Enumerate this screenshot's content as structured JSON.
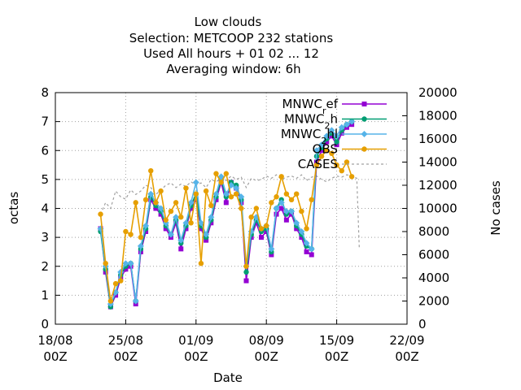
{
  "chart_data": {
    "type": "line",
    "title_lines": [
      "Low clouds",
      "Selection: METCOOP    232 stations",
      "Used  All hours + 01 02 ... 12",
      "Averaging window:  6h"
    ],
    "xlabel": "Date",
    "ylabel": "octas",
    "y2label": "No cases",
    "xlim": [
      "2023-08-18 00:00",
      "2023-09-22 00:00"
    ],
    "ylim": [
      0,
      8
    ],
    "y2lim": [
      0,
      20000
    ],
    "x_ticks": [
      {
        "date": "2023-08-18 00:00",
        "line1": "18/08",
        "line2": "00Z"
      },
      {
        "date": "2023-08-25 00:00",
        "line1": "25/08",
        "line2": "00Z"
      },
      {
        "date": "2023-09-01 00:00",
        "line1": "01/09",
        "line2": "00Z"
      },
      {
        "date": "2023-09-08 00:00",
        "line1": "08/09",
        "line2": "00Z"
      },
      {
        "date": "2023-09-15 00:00",
        "line1": "15/09",
        "line2": "00Z"
      },
      {
        "date": "2023-09-22 00:00",
        "line1": "22/09",
        "line2": "00Z"
      }
    ],
    "y_ticks": [
      "0",
      "1",
      "2",
      "3",
      "4",
      "5",
      "6",
      "7",
      "8"
    ],
    "y2_ticks": [
      "0",
      "2000",
      "4000",
      "6000",
      "8000",
      "10000",
      "12000",
      "14000",
      "16000",
      "18000",
      "20000"
    ],
    "grid": true,
    "legend_position": "top-right",
    "series": [
      {
        "name": "MNWC_ref",
        "legend_base": "MNWC",
        "legend_sub": "r",
        "legend_rest": "ef",
        "color": "#9400d3",
        "marker": "square",
        "axis": "y",
        "x": [
          "2023-08-22 12:00",
          "2023-08-23 00:00",
          "2023-08-23 12:00",
          "2023-08-24 00:00",
          "2023-08-24 12:00",
          "2023-08-25 00:00",
          "2023-08-25 12:00",
          "2023-08-26 00:00",
          "2023-08-26 12:00",
          "2023-08-27 00:00",
          "2023-08-27 12:00",
          "2023-08-28 00:00",
          "2023-08-28 12:00",
          "2023-08-29 00:00",
          "2023-08-29 12:00",
          "2023-08-30 00:00",
          "2023-08-30 12:00",
          "2023-08-31 00:00",
          "2023-08-31 12:00",
          "2023-09-01 00:00",
          "2023-09-01 12:00",
          "2023-09-02 00:00",
          "2023-09-02 12:00",
          "2023-09-03 00:00",
          "2023-09-03 12:00",
          "2023-09-04 00:00",
          "2023-09-04 12:00",
          "2023-09-05 00:00",
          "2023-09-05 12:00",
          "2023-09-06 00:00",
          "2023-09-06 12:00",
          "2023-09-07 00:00",
          "2023-09-07 12:00",
          "2023-09-08 00:00",
          "2023-09-08 12:00",
          "2023-09-09 00:00",
          "2023-09-09 12:00",
          "2023-09-10 00:00",
          "2023-09-10 12:00",
          "2023-09-11 00:00",
          "2023-09-11 12:00",
          "2023-09-12 00:00",
          "2023-09-12 12:00",
          "2023-09-13 00:00",
          "2023-09-13 12:00",
          "2023-09-14 00:00",
          "2023-09-14 12:00",
          "2023-09-15 00:00",
          "2023-09-15 12:00",
          "2023-09-16 00:00",
          "2023-09-16 12:00"
        ],
        "y": [
          3.3,
          1.8,
          0.6,
          1.0,
          1.6,
          1.9,
          2.0,
          0.7,
          2.5,
          3.2,
          4.3,
          4.0,
          3.8,
          3.3,
          3.0,
          3.5,
          2.6,
          3.3,
          4.0,
          4.3,
          3.3,
          2.9,
          3.5,
          4.3,
          4.9,
          4.2,
          4.9,
          4.7,
          4.2,
          1.5,
          3.0,
          3.5,
          3.0,
          3.2,
          2.4,
          3.8,
          4.0,
          3.6,
          3.8,
          3.3,
          3.0,
          2.5,
          2.4,
          5.6,
          6.0,
          6.3,
          6.5,
          6.2,
          6.6,
          6.8,
          6.9
        ]
      },
      {
        "name": "MNWC_2h",
        "legend_base": "MNWC",
        "legend_sub": "2",
        "legend_rest": "h",
        "color": "#009e73",
        "marker": "circle",
        "axis": "y",
        "x": [
          "2023-08-22 12:00",
          "2023-08-23 00:00",
          "2023-08-23 12:00",
          "2023-08-24 00:00",
          "2023-08-24 12:00",
          "2023-08-25 00:00",
          "2023-08-25 12:00",
          "2023-08-26 00:00",
          "2023-08-26 12:00",
          "2023-08-27 00:00",
          "2023-08-27 12:00",
          "2023-08-28 00:00",
          "2023-08-28 12:00",
          "2023-08-29 00:00",
          "2023-08-29 12:00",
          "2023-08-30 00:00",
          "2023-08-30 12:00",
          "2023-08-31 00:00",
          "2023-08-31 12:00",
          "2023-09-01 00:00",
          "2023-09-01 12:00",
          "2023-09-02 00:00",
          "2023-09-02 12:00",
          "2023-09-03 00:00",
          "2023-09-03 12:00",
          "2023-09-04 00:00",
          "2023-09-04 12:00",
          "2023-09-05 00:00",
          "2023-09-05 12:00",
          "2023-09-06 00:00",
          "2023-09-06 12:00",
          "2023-09-07 00:00",
          "2023-09-07 12:00",
          "2023-09-08 00:00",
          "2023-09-08 12:00",
          "2023-09-09 00:00",
          "2023-09-09 12:00",
          "2023-09-10 00:00",
          "2023-09-10 12:00",
          "2023-09-11 00:00",
          "2023-09-11 12:00",
          "2023-09-12 00:00",
          "2023-09-12 12:00",
          "2023-09-13 00:00",
          "2023-09-13 12:00",
          "2023-09-14 00:00",
          "2023-09-14 12:00",
          "2023-09-15 00:00",
          "2023-09-15 12:00",
          "2023-09-16 00:00",
          "2023-09-16 12:00"
        ],
        "y": [
          3.2,
          1.9,
          0.6,
          1.1,
          1.7,
          2.0,
          2.1,
          0.8,
          2.6,
          3.3,
          4.4,
          4.1,
          3.9,
          3.4,
          3.1,
          3.6,
          2.8,
          3.4,
          4.1,
          4.5,
          3.4,
          3.0,
          3.6,
          4.4,
          5.0,
          4.4,
          4.9,
          4.8,
          4.3,
          1.8,
          3.1,
          3.6,
          3.2,
          3.3,
          2.5,
          4.0,
          4.3,
          3.8,
          3.9,
          3.4,
          3.1,
          2.7,
          2.6,
          5.8,
          6.1,
          6.4,
          6.6,
          6.3,
          6.7,
          6.9,
          7.0
        ]
      },
      {
        "name": "MNWC_2hl",
        "legend_base": "MNWC",
        "legend_sub": "2",
        "legend_rest": "hl",
        "color": "#56b4e9",
        "marker": "diamond",
        "axis": "y",
        "x": [
          "2023-08-22 12:00",
          "2023-08-23 00:00",
          "2023-08-23 12:00",
          "2023-08-24 00:00",
          "2023-08-24 12:00",
          "2023-08-25 00:00",
          "2023-08-25 12:00",
          "2023-08-26 00:00",
          "2023-08-26 12:00",
          "2023-08-27 00:00",
          "2023-08-27 12:00",
          "2023-08-28 00:00",
          "2023-08-28 12:00",
          "2023-08-29 00:00",
          "2023-08-29 12:00",
          "2023-08-30 00:00",
          "2023-08-30 12:00",
          "2023-08-31 00:00",
          "2023-08-31 12:00",
          "2023-09-01 00:00",
          "2023-09-01 12:00",
          "2023-09-02 00:00",
          "2023-09-02 12:00",
          "2023-09-03 00:00",
          "2023-09-03 12:00",
          "2023-09-04 00:00",
          "2023-09-04 12:00",
          "2023-09-05 00:00",
          "2023-09-05 12:00",
          "2023-09-06 00:00",
          "2023-09-06 12:00",
          "2023-09-07 00:00",
          "2023-09-07 12:00",
          "2023-09-08 00:00",
          "2023-09-08 12:00",
          "2023-09-09 00:00",
          "2023-09-09 12:00",
          "2023-09-10 00:00",
          "2023-09-10 12:00",
          "2023-09-11 00:00",
          "2023-09-11 12:00",
          "2023-09-12 00:00",
          "2023-09-12 12:00",
          "2023-09-13 00:00",
          "2023-09-13 12:00",
          "2023-09-14 00:00",
          "2023-09-14 12:00",
          "2023-09-15 00:00",
          "2023-09-15 12:00",
          "2023-09-16 00:00",
          "2023-09-16 12:00"
        ],
        "y": [
          3.3,
          2.0,
          0.7,
          1.1,
          1.8,
          2.1,
          2.1,
          0.8,
          2.7,
          3.4,
          4.5,
          4.2,
          4.0,
          3.5,
          3.1,
          3.7,
          2.9,
          3.5,
          4.2,
          4.9,
          3.5,
          3.1,
          3.7,
          4.5,
          5.1,
          4.5,
          4.8,
          4.7,
          4.4,
          2.0,
          3.2,
          3.7,
          3.3,
          3.4,
          2.6,
          4.0,
          4.2,
          3.9,
          3.9,
          3.5,
          3.2,
          2.8,
          2.6,
          6.0,
          6.2,
          6.5,
          6.7,
          6.5,
          6.8,
          6.9,
          7.0
        ]
      },
      {
        "name": "OBS",
        "legend_base": "OBS",
        "legend_sub": "",
        "legend_rest": "",
        "color": "#e69f00",
        "marker": "circle",
        "axis": "y",
        "x": [
          "2023-08-22 12:00",
          "2023-08-23 00:00",
          "2023-08-23 12:00",
          "2023-08-24 00:00",
          "2023-08-24 12:00",
          "2023-08-25 00:00",
          "2023-08-25 12:00",
          "2023-08-26 00:00",
          "2023-08-26 12:00",
          "2023-08-27 00:00",
          "2023-08-27 12:00",
          "2023-08-28 00:00",
          "2023-08-28 12:00",
          "2023-08-29 00:00",
          "2023-08-29 12:00",
          "2023-08-30 00:00",
          "2023-08-30 12:00",
          "2023-08-31 00:00",
          "2023-08-31 12:00",
          "2023-09-01 00:00",
          "2023-09-01 12:00",
          "2023-09-02 00:00",
          "2023-09-02 12:00",
          "2023-09-03 00:00",
          "2023-09-03 12:00",
          "2023-09-04 00:00",
          "2023-09-04 12:00",
          "2023-09-05 00:00",
          "2023-09-05 12:00",
          "2023-09-06 00:00",
          "2023-09-06 12:00",
          "2023-09-07 00:00",
          "2023-09-07 12:00",
          "2023-09-08 00:00",
          "2023-09-08 12:00",
          "2023-09-09 00:00",
          "2023-09-09 12:00",
          "2023-09-10 00:00",
          "2023-09-10 12:00",
          "2023-09-11 00:00",
          "2023-09-11 12:00",
          "2023-09-12 00:00",
          "2023-09-12 12:00",
          "2023-09-13 00:00",
          "2023-09-13 12:00",
          "2023-09-14 00:00",
          "2023-09-14 12:00",
          "2023-09-15 00:00",
          "2023-09-15 12:00",
          "2023-09-16 00:00",
          "2023-09-16 12:00"
        ],
        "y": [
          3.8,
          2.1,
          0.8,
          1.4,
          1.5,
          3.2,
          3.1,
          4.2,
          3.0,
          4.3,
          5.3,
          4.2,
          4.6,
          3.6,
          3.9,
          4.2,
          3.7,
          4.7,
          3.5,
          4.5,
          2.1,
          4.6,
          4.1,
          5.2,
          4.9,
          5.2,
          4.4,
          4.5,
          4.0,
          2.0,
          3.7,
          4.0,
          3.3,
          3.4,
          4.2,
          4.4,
          5.1,
          4.5,
          4.3,
          4.5,
          3.9,
          3.3,
          4.3,
          5.5,
          5.8,
          6.0,
          5.9,
          5.5,
          5.3,
          5.6,
          5.1
        ]
      },
      {
        "name": "CASES",
        "legend_base": "CASES",
        "legend_sub": "",
        "legend_rest": "",
        "color": "#a0a0a0",
        "marker": "none",
        "dashed": true,
        "axis": "y2",
        "x": [
          "2023-08-22 12:00",
          "2023-08-23 00:00",
          "2023-08-23 12:00",
          "2023-08-24 00:00",
          "2023-08-24 12:00",
          "2023-08-25 00:00",
          "2023-08-25 12:00",
          "2023-08-26 00:00",
          "2023-08-26 12:00",
          "2023-08-27 00:00",
          "2023-08-27 12:00",
          "2023-08-28 00:00",
          "2023-08-28 12:00",
          "2023-08-29 00:00",
          "2023-08-29 12:00",
          "2023-08-30 00:00",
          "2023-08-30 12:00",
          "2023-08-31 00:00",
          "2023-08-31 12:00",
          "2023-09-01 00:00",
          "2023-09-01 12:00",
          "2023-09-02 00:00",
          "2023-09-02 12:00",
          "2023-09-03 00:00",
          "2023-09-03 12:00",
          "2023-09-04 00:00",
          "2023-09-04 12:00",
          "2023-09-05 00:00",
          "2023-09-05 12:00",
          "2023-09-06 00:00",
          "2023-09-06 12:00",
          "2023-09-07 00:00",
          "2023-09-07 12:00",
          "2023-09-08 00:00",
          "2023-09-08 12:00",
          "2023-09-09 00:00",
          "2023-09-09 12:00",
          "2023-09-10 00:00",
          "2023-09-10 12:00",
          "2023-09-11 00:00",
          "2023-09-11 12:00",
          "2023-09-12 00:00",
          "2023-09-12 12:00",
          "2023-09-13 00:00",
          "2023-09-13 12:00",
          "2023-09-14 00:00",
          "2023-09-14 12:00",
          "2023-09-15 00:00",
          "2023-09-15 12:00",
          "2023-09-16 00:00",
          "2023-09-16 12:00",
          "2023-09-17 00:00",
          "2023-09-17 06:00"
        ],
        "y": [
          9500,
          10500,
          10000,
          11500,
          11000,
          10800,
          11600,
          11200,
          11500,
          12000,
          11800,
          11200,
          11600,
          12000,
          12200,
          11800,
          12100,
          11900,
          12300,
          12000,
          12200,
          11800,
          12500,
          12300,
          12600,
          12400,
          12800,
          12500,
          12700,
          11800,
          12600,
          12400,
          12500,
          12800,
          12600,
          12900,
          12500,
          12700,
          12800,
          12600,
          12900,
          12400,
          12700,
          12800,
          12500,
          12300,
          12600,
          12800,
          12700,
          12900,
          12800,
          12600,
          6500
        ]
      }
    ]
  }
}
